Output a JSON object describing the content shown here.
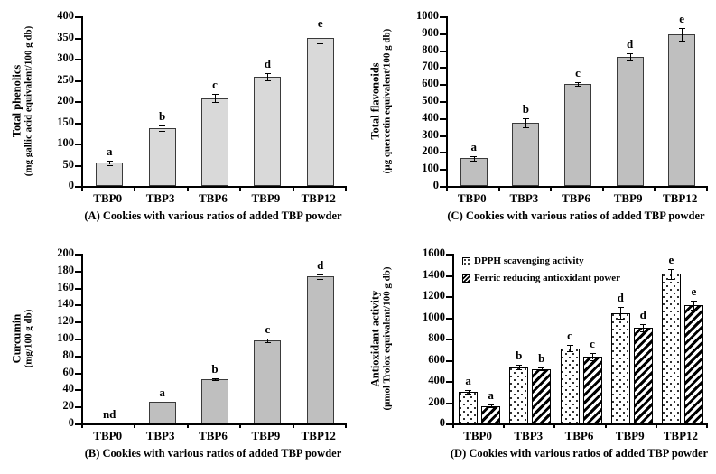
{
  "chart_data": [
    {
      "id": "A",
      "type": "bar",
      "axis_title": "Total phenolics",
      "axis_unit": "(mg gallic acid equivalent/100 g db)",
      "caption": "(A) Cookies with various ratios of added TBP powder",
      "categories": [
        "TBP0",
        "TBP3",
        "TBP6",
        "TBP9",
        "TBP12"
      ],
      "ylim": [
        0,
        400
      ],
      "ystep": 50,
      "yticks": [
        "0",
        "50",
        "100",
        "150",
        "200",
        "250",
        "300",
        "350",
        "400"
      ],
      "grid": false,
      "series": [
        {
          "name": "Total phenolics",
          "pattern": "solid",
          "fill": "#d9d9d9",
          "values": [
            55,
            136,
            207,
            258,
            349
          ],
          "errors": [
            5,
            7,
            10,
            9,
            12
          ],
          "letters": [
            "a",
            "b",
            "c",
            "d",
            "e"
          ]
        }
      ]
    },
    {
      "id": "C",
      "type": "bar",
      "axis_title": "Total flavonoids",
      "axis_unit": "(μg quercetin equivalent/100 g db)",
      "caption": "(C) Cookies with various ratios of added TBP powder",
      "categories": [
        "TBP0",
        "TBP3",
        "TBP6",
        "TBP9",
        "TBP12"
      ],
      "ylim": [
        0,
        1000
      ],
      "ystep": 100,
      "yticks": [
        "0",
        "100",
        "200",
        "300",
        "400",
        "500",
        "600",
        "700",
        "800",
        "900",
        "1000"
      ],
      "grid": false,
      "series": [
        {
          "name": "Total flavonoids",
          "pattern": "solid",
          "fill": "#bfbfbf",
          "values": [
            163,
            372,
            600,
            760,
            895
          ],
          "errors": [
            12,
            25,
            10,
            22,
            38
          ],
          "letters": [
            "a",
            "b",
            "c",
            "d",
            "e"
          ]
        }
      ]
    },
    {
      "id": "B",
      "type": "bar",
      "axis_title": "Curcumin",
      "axis_unit": "(mg/100 g db)",
      "caption": "(B) Cookies with various ratios of added TBP powder",
      "categories": [
        "TBP0",
        "TBP3",
        "TBP6",
        "TBP9",
        "TBP12"
      ],
      "ylim": [
        0,
        200
      ],
      "ystep": 20,
      "yticks": [
        "0",
        "20",
        "40",
        "60",
        "80",
        "100",
        "120",
        "140",
        "160",
        "180",
        "200"
      ],
      "grid": false,
      "series": [
        {
          "name": "Curcumin",
          "pattern": "solid",
          "fill": "#bfbfbf",
          "values": [
            0,
            26,
            52,
            98,
            173
          ],
          "errors": [
            0,
            0,
            1,
            2.5,
            3
          ],
          "letters": [
            "nd",
            "a",
            "b",
            "c",
            "d"
          ]
        }
      ]
    },
    {
      "id": "D",
      "type": "bar",
      "axis_title": "Antioxidant activity",
      "axis_unit": "(μmol Trolox equivalent/100 g db)",
      "caption": "(D) Cookies with various ratios of added TBP powder",
      "categories": [
        "TBP0",
        "TBP3",
        "TBP6",
        "TBP9",
        "TBP12"
      ],
      "ylim": [
        0,
        1600
      ],
      "ystep": 200,
      "yticks": [
        "0",
        "200",
        "400",
        "600",
        "800",
        "1000",
        "1200",
        "1400",
        "1600"
      ],
      "grid": false,
      "legend": [
        "DPPH scavenging activity",
        "Ferric reducing antioxidant power"
      ],
      "legend_position": "top-left-inside",
      "series": [
        {
          "name": "DPPH scavenging activity",
          "pattern": "dots",
          "fill": "#ffffff",
          "values": [
            300,
            530,
            710,
            1040,
            1410
          ],
          "errors": [
            15,
            20,
            28,
            55,
            45
          ],
          "letters": [
            "a",
            "b",
            "c",
            "d",
            "e"
          ]
        },
        {
          "name": "Ferric reducing antioxidant power",
          "pattern": "hatch",
          "fill": "#ffffff",
          "values": [
            165,
            515,
            630,
            900,
            1115
          ],
          "errors": [
            12,
            12,
            30,
            35,
            45
          ],
          "letters": [
            "a",
            "b",
            "c",
            "d",
            "e"
          ]
        }
      ]
    }
  ],
  "colors": {
    "bar_light_gray": "#d9d9d9",
    "bar_gray": "#bfbfbf",
    "axis_black": "#000000",
    "background": "#ffffff"
  }
}
